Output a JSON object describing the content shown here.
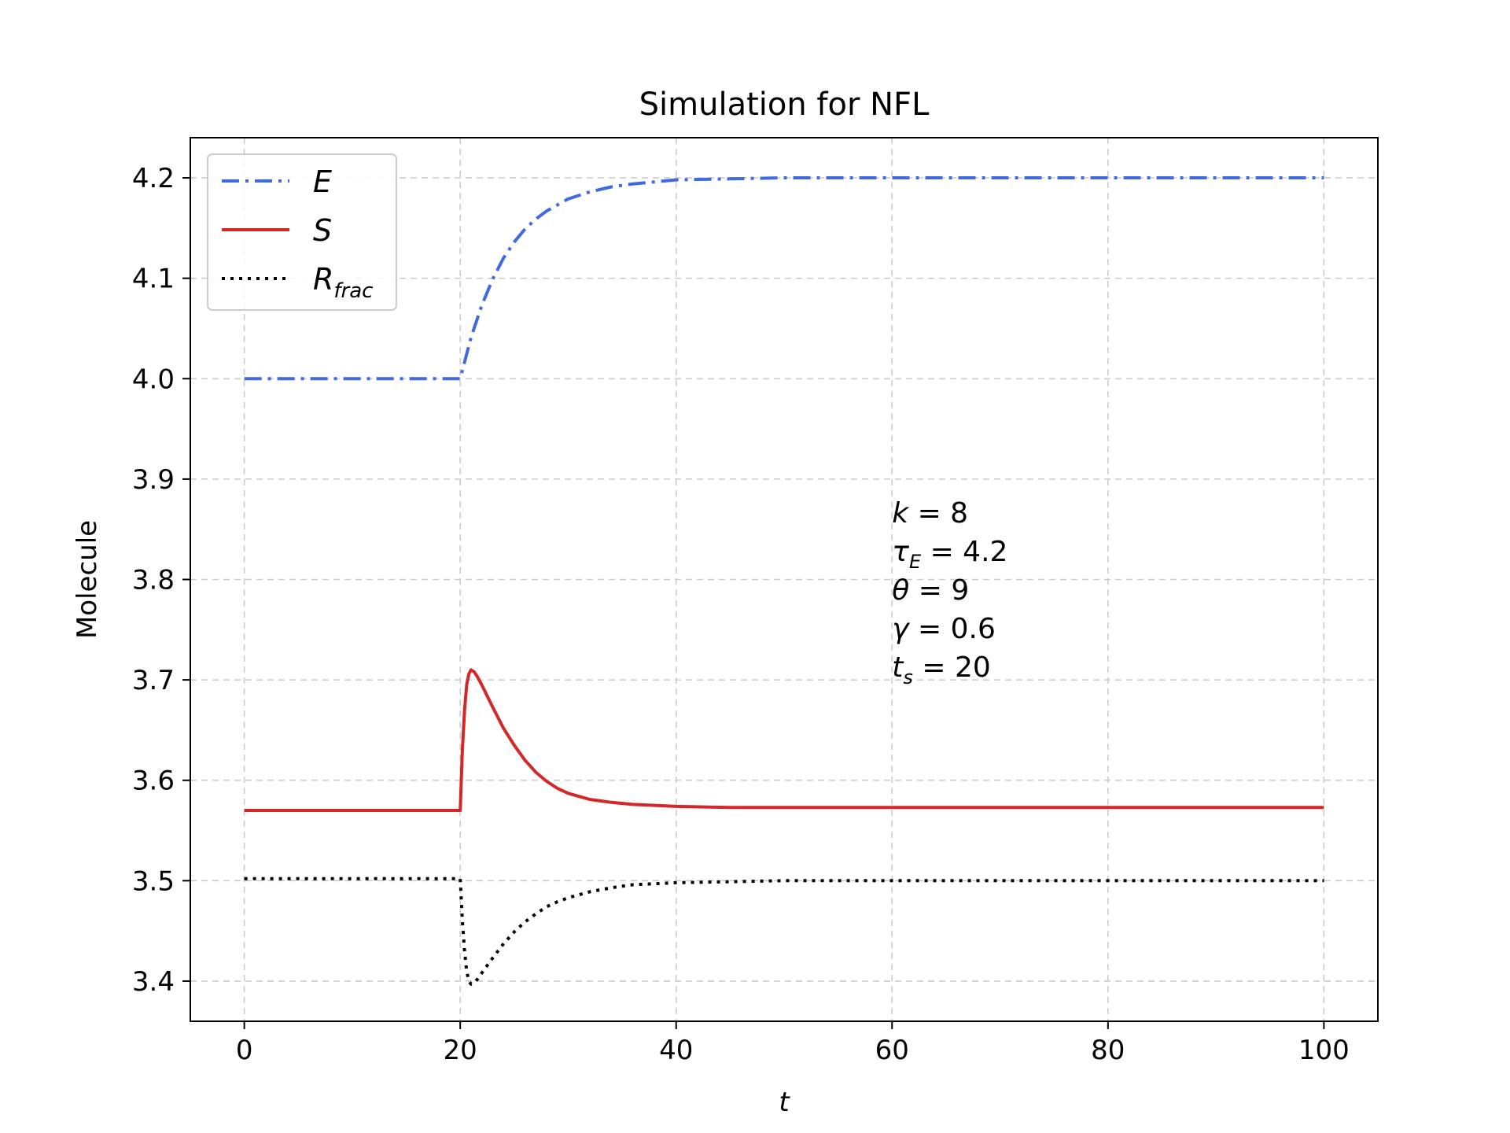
{
  "chart_data": {
    "type": "line",
    "title": "Simulation for NFL",
    "xlabel": "t",
    "ylabel": "Molecule",
    "xlim": [
      -5,
      105
    ],
    "ylim": [
      3.36,
      4.24
    ],
    "xticks": [
      0,
      20,
      40,
      60,
      80,
      100
    ],
    "yticks": [
      3.4,
      3.5,
      3.6,
      3.7,
      3.8,
      3.9,
      4.0,
      4.1,
      4.2
    ],
    "xtick_labels": [
      "0",
      "20",
      "40",
      "60",
      "80",
      "100"
    ],
    "ytick_labels": [
      "3.4",
      "3.5",
      "3.6",
      "3.7",
      "3.8",
      "3.9",
      "4.0",
      "4.1",
      "4.2"
    ],
    "grid": true,
    "legend_position": "top-left",
    "series": [
      {
        "name": "E",
        "color": "#4169E1",
        "style": "dashdot",
        "x": [
          0,
          10,
          20,
          21,
          22,
          23,
          24,
          25,
          26,
          27,
          28,
          29,
          30,
          32,
          34,
          36,
          38,
          40,
          45,
          50,
          60,
          70,
          80,
          90,
          100
        ],
        "y": [
          4.0,
          4.0,
          4.0,
          4.041,
          4.073,
          4.099,
          4.12,
          4.136,
          4.149,
          4.159,
          4.167,
          4.173,
          4.179,
          4.186,
          4.191,
          4.194,
          4.196,
          4.198,
          4.199,
          4.2,
          4.2,
          4.2,
          4.2,
          4.2,
          4.2
        ]
      },
      {
        "name": "S",
        "color": "#D62728",
        "style": "solid",
        "x": [
          0,
          10,
          20,
          20.2,
          20.4,
          20.6,
          20.8,
          21,
          21.3,
          21.6,
          22,
          23,
          24,
          25,
          26,
          27,
          28,
          29,
          30,
          32,
          34,
          36,
          38,
          40,
          45,
          50,
          60,
          70,
          80,
          90,
          100
        ],
        "y": [
          3.57,
          3.57,
          3.57,
          3.63,
          3.67,
          3.695,
          3.706,
          3.71,
          3.708,
          3.703,
          3.695,
          3.673,
          3.652,
          3.635,
          3.62,
          3.608,
          3.599,
          3.592,
          3.587,
          3.581,
          3.578,
          3.576,
          3.575,
          3.574,
          3.573,
          3.573,
          3.573,
          3.573,
          3.573,
          3.573,
          3.573
        ]
      },
      {
        "name": "R_frac",
        "color": "#000000",
        "style": "dotted",
        "x": [
          0,
          10,
          20,
          20.2,
          20.4,
          20.6,
          20.8,
          21,
          21.3,
          21.6,
          22,
          23,
          24,
          25,
          26,
          27,
          28,
          29,
          30,
          32,
          34,
          36,
          38,
          40,
          45,
          50,
          60,
          70,
          80,
          90,
          100
        ],
        "y": [
          3.502,
          3.502,
          3.502,
          3.46,
          3.43,
          3.41,
          3.4,
          3.397,
          3.398,
          3.402,
          3.408,
          3.423,
          3.437,
          3.449,
          3.459,
          3.467,
          3.474,
          3.479,
          3.483,
          3.489,
          3.493,
          3.496,
          3.497,
          3.498,
          3.499,
          3.5,
          3.5,
          3.5,
          3.5,
          3.5,
          3.5
        ]
      }
    ],
    "legend": [
      {
        "main": "E",
        "sub": ""
      },
      {
        "main": "S",
        "sub": ""
      },
      {
        "main": "R",
        "sub": "frac"
      }
    ],
    "annotation": {
      "lines": [
        {
          "sym": "k",
          "sub": "",
          "eq": " = 8"
        },
        {
          "sym": "τ",
          "sub": "E",
          "eq": " = 4.2"
        },
        {
          "sym": "θ",
          "sub": "",
          "eq": " = 9"
        },
        {
          "sym": "γ",
          "sub": "",
          "eq": " = 0.6"
        },
        {
          "sym": "t",
          "sub": "s",
          "eq": " = 20"
        }
      ]
    }
  }
}
